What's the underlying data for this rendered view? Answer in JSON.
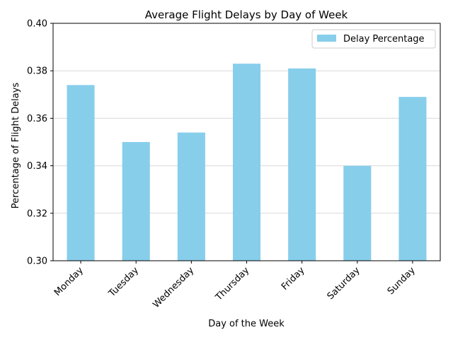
{
  "chart_data": {
    "type": "bar",
    "title": "Average Flight Delays by Day of Week",
    "xlabel": "Day of the Week",
    "ylabel": "Percentage of Flight Delays",
    "categories": [
      "Monday",
      "Tuesday",
      "Wednesday",
      "Thursday",
      "Friday",
      "Saturday",
      "Sunday"
    ],
    "series": [
      {
        "name": "Delay Percentage",
        "values": [
          0.374,
          0.35,
          0.354,
          0.383,
          0.381,
          0.34,
          0.369
        ]
      }
    ],
    "ylim": [
      0.3,
      0.4
    ],
    "yticks": [
      "0.30",
      "0.32",
      "0.34",
      "0.36",
      "0.38",
      "0.40"
    ],
    "grid": "y",
    "legend_position": "top-right",
    "bar_color": "#87ceeb",
    "grid_color": "#d9d9d9"
  }
}
